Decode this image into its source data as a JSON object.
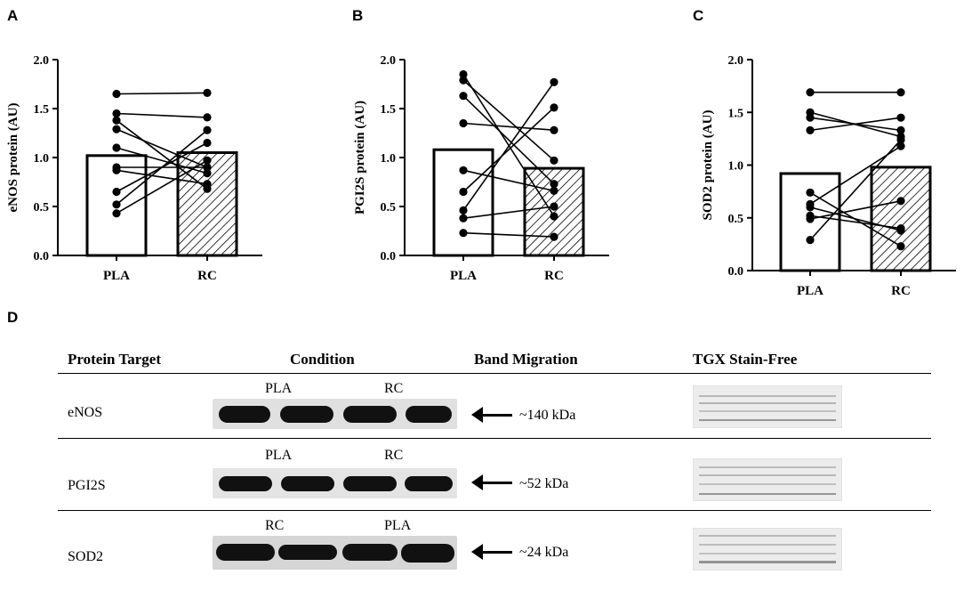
{
  "panels": {
    "A": {
      "letter": "A",
      "ylabel": "eNOS protein (AU)",
      "categories": [
        "PLA",
        "RC"
      ],
      "yticks": [
        "0.0",
        "0.5",
        "1.0",
        "1.5",
        "2.0"
      ]
    },
    "B": {
      "letter": "B",
      "ylabel": "PGI2S protein (AU)",
      "categories": [
        "PLA",
        "RC"
      ],
      "yticks": [
        "0.0",
        "0.5",
        "1.0",
        "1.5",
        "2.0"
      ]
    },
    "C": {
      "letter": "C",
      "ylabel": "SOD2 protein (AU)",
      "categories": [
        "PLA",
        "RC"
      ],
      "yticks": [
        "0.0",
        "0.5",
        "1.0",
        "1.5",
        "2.0"
      ]
    },
    "D": {
      "letter": "D"
    }
  },
  "chart_data": [
    {
      "type": "bar",
      "ylabel": "eNOS protein (AU)",
      "categories": [
        "PLA",
        "RC"
      ],
      "values": [
        1.02,
        1.05
      ],
      "ylim": [
        0,
        2.0
      ],
      "pairs": [
        [
          1.65,
          1.66
        ],
        [
          1.45,
          1.41
        ],
        [
          1.38,
          0.68
        ],
        [
          1.29,
          0.9
        ],
        [
          1.1,
          0.84
        ],
        [
          0.9,
          0.9
        ],
        [
          0.87,
          0.73
        ],
        [
          0.65,
          1.15
        ],
        [
          0.52,
          1.28
        ],
        [
          0.43,
          0.97
        ]
      ],
      "bar_styles": [
        "open",
        "hatched"
      ]
    },
    {
      "type": "bar",
      "ylabel": "PGI2S protein (AU)",
      "categories": [
        "PLA",
        "RC"
      ],
      "values": [
        1.08,
        0.89
      ],
      "ylim": [
        0,
        2.0
      ],
      "pairs": [
        [
          1.85,
          0.4
        ],
        [
          1.79,
          0.97
        ],
        [
          1.63,
          0.73
        ],
        [
          1.35,
          1.28
        ],
        [
          0.87,
          0.66
        ],
        [
          0.65,
          1.51
        ],
        [
          0.46,
          1.77
        ],
        [
          0.38,
          0.5
        ],
        [
          0.23,
          0.19
        ]
      ],
      "bar_styles": [
        "open",
        "hatched"
      ]
    },
    {
      "type": "bar",
      "ylabel": "SOD2 protein (AU)",
      "categories": [
        "PLA",
        "RC"
      ],
      "values": [
        0.92,
        0.98
      ],
      "ylim": [
        0,
        2.0
      ],
      "pairs": [
        [
          1.69,
          1.69
        ],
        [
          1.5,
          1.27
        ],
        [
          1.45,
          1.33
        ],
        [
          1.33,
          1.45
        ],
        [
          0.74,
          0.23
        ],
        [
          0.63,
          1.18
        ],
        [
          0.6,
          0.38
        ],
        [
          0.52,
          0.4
        ],
        [
          0.49,
          0.66
        ],
        [
          0.29,
          1.24
        ]
      ],
      "bar_styles": [
        "open",
        "hatched"
      ]
    }
  ],
  "table": {
    "headers": [
      "Protein Target",
      "Condition",
      "Band Migration",
      "TGX Stain-Free"
    ],
    "rows": [
      {
        "target": "eNOS",
        "lane_left": "PLA",
        "lane_right": "RC",
        "migration": "~140 kDa"
      },
      {
        "target": "PGI2S",
        "lane_left": "PLA",
        "lane_right": "RC",
        "migration": "~52 kDa"
      },
      {
        "target": "SOD2",
        "lane_left": "RC",
        "lane_right": "PLA",
        "migration": "~24 kDa"
      }
    ]
  },
  "colors": {
    "ink": "#000000",
    "blot_bg": "#d8d8d8",
    "band": "#111111",
    "stain_bg": "#ececec",
    "stain_band": "#8e8e8e"
  }
}
